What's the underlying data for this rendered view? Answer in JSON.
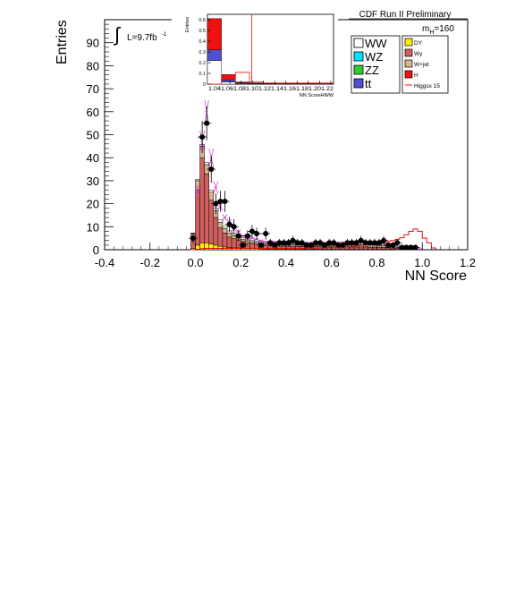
{
  "header": {
    "title": "CDF Run II Preliminary",
    "mass_label": "m_H=160",
    "luminosity": "L=9.7fb"
  },
  "legend": {
    "left": [
      {
        "label": "WW",
        "color": "#ffffff"
      },
      {
        "label": "WZ",
        "color": "#00e5ff"
      },
      {
        "label": "ZZ",
        "color": "#33cc33"
      },
      {
        "label": "tt",
        "color": "#5050d0"
      }
    ],
    "right": [
      {
        "label": "DY",
        "color": "#ffee00"
      },
      {
        "label": "Wγ",
        "color": "#d06060"
      },
      {
        "label": "W+jet",
        "color": "#d8b48c"
      },
      {
        "label": "H",
        "color": "#ee1111"
      },
      {
        "label": "Higgsx 15",
        "color": "#ee1111",
        "style": "line"
      }
    ]
  },
  "chart_data": [
    {
      "type": "bar",
      "title": "",
      "xlabel": "NN Score",
      "ylabel": "Entries",
      "xlim": [
        -0.4,
        1.2
      ],
      "ylim": [
        0,
        100
      ],
      "xticks": [
        "-0.4",
        "-0.2",
        "0.0",
        "0.2",
        "0.4",
        "0.6",
        "0.8",
        "1.0",
        "1.2"
      ],
      "yticks": [
        "0",
        "10",
        "20",
        "30",
        "40",
        "50",
        "60",
        "70",
        "80",
        "90"
      ],
      "bin_width": 0.02,
      "x": [
        -0.01,
        0.01,
        0.03,
        0.05,
        0.07,
        0.09,
        0.11,
        0.13,
        0.15,
        0.17,
        0.19,
        0.21,
        0.23,
        0.25,
        0.27,
        0.29,
        0.31,
        0.33,
        0.35,
        0.37,
        0.39,
        0.41,
        0.43,
        0.45,
        0.47,
        0.49,
        0.51,
        0.53,
        0.55,
        0.57,
        0.59,
        0.61,
        0.63,
        0.65,
        0.67,
        0.69,
        0.71,
        0.73,
        0.75,
        0.77,
        0.79,
        0.81,
        0.83,
        0.85,
        0.87,
        0.89,
        0.91,
        0.93,
        0.95,
        0.97,
        0.99,
        1.01,
        1.03,
        1.05
      ],
      "series": [
        {
          "name": "DY",
          "color": "#ffee00",
          "values": [
            0.5,
            2,
            3,
            3,
            2.5,
            2,
            1.5,
            1.2,
            1,
            0.8,
            0.8,
            0.6,
            0.5,
            0.5,
            0.5,
            0.4,
            0.3,
            0.3,
            0.3,
            0.3,
            0.3,
            0.3,
            0.3,
            0.3,
            0.2,
            0.2,
            0.2,
            0.2,
            0.2,
            0.2,
            0.2,
            0.2,
            0.2,
            0.2,
            0.2,
            0.2,
            0.2,
            0.2,
            0.2,
            0.2,
            0.2,
            0.2,
            0.2,
            0.2,
            0.2,
            0.1,
            0.1,
            0.1,
            0.1,
            0.1,
            0.1,
            0,
            0,
            0
          ]
        },
        {
          "name": "Wγ",
          "color": "#d06060",
          "values": [
            5,
            24,
            37,
            30,
            19,
            12,
            8,
            6,
            4.5,
            4,
            3.5,
            3,
            2.5,
            2.2,
            2,
            1.8,
            1.6,
            1.5,
            1.4,
            1.4,
            1.3,
            1.3,
            1.2,
            1.2,
            1.2,
            1.1,
            1.1,
            1.1,
            1.1,
            1.0,
            1.0,
            1.0,
            1.0,
            1.0,
            1.0,
            1.0,
            1.0,
            1.0,
            1.0,
            0.9,
            0.9,
            0.9,
            0.8,
            0.7,
            0.6,
            0.5,
            0.4,
            0.3,
            0.2,
            0.1,
            0.1,
            0,
            0,
            0
          ]
        },
        {
          "name": "W+jet",
          "color": "#d8b48c",
          "values": [
            1.5,
            4,
            5,
            4,
            3.5,
            3,
            2.5,
            2,
            1.8,
            1.5,
            1.2,
            1.0,
            0.9,
            0.8,
            0.7,
            0.7,
            0.6,
            0.6,
            0.6,
            0.6,
            0.6,
            0.6,
            0.6,
            0.6,
            0.6,
            0.6,
            0.6,
            0.6,
            0.6,
            0.6,
            0.6,
            0.7,
            0.7,
            0.8,
            0.8,
            0.9,
            0.9,
            1.0,
            1.0,
            1.0,
            1.0,
            0.9,
            0.8,
            0.7,
            0.6,
            0.5,
            0.4,
            0.3,
            0.2,
            0.1,
            0.1,
            0,
            0,
            0
          ]
        },
        {
          "name": "WW",
          "color": "#ffffff",
          "values": [
            0.3,
            0.5,
            0.8,
            1.0,
            1.0,
            1.0,
            1.0,
            0.9,
            0.9,
            0.8,
            0.8,
            0.7,
            0.7,
            0.7,
            0.6,
            0.6,
            0.6,
            0.6,
            0.6,
            0.6,
            0.6,
            0.6,
            0.6,
            0.6,
            0.6,
            0.6,
            0.6,
            0.6,
            0.6,
            0.7,
            0.7,
            0.7,
            0.7,
            0.7,
            0.7,
            0.8,
            0.8,
            0.8,
            0.8,
            0.8,
            0.8,
            0.8,
            0.7,
            0.6,
            0.5,
            0.4,
            0.3,
            0.2,
            0.2,
            0.1,
            0.1,
            0,
            0,
            0
          ]
        }
      ],
      "signal": {
        "name": "Higgsx 15",
        "color": "#ee1111",
        "values": [
          0,
          0.2,
          0.5,
          0.6,
          0.6,
          0.6,
          0.6,
          0.6,
          0.6,
          0.6,
          0.6,
          0.6,
          0.6,
          0.6,
          0.6,
          0.6,
          0.6,
          0.6,
          0.6,
          0.6,
          0.6,
          0.6,
          0.6,
          0.6,
          0.6,
          0.7,
          0.7,
          0.7,
          0.8,
          0.8,
          0.9,
          1.0,
          1.1,
          1.2,
          1.3,
          1.5,
          1.7,
          1.9,
          2.1,
          2.4,
          2.7,
          3.0,
          3.3,
          3.6,
          4.0,
          4.5,
          5.2,
          6.5,
          8.0,
          9.0,
          8.0,
          5.0,
          3.0,
          0.8
        ]
      },
      "uncertainty_band": {
        "color": "#cc33cc",
        "values": [
          6,
          26,
          47,
          60,
          40,
          27,
          19,
          14,
          12,
          9,
          8,
          6,
          5,
          5,
          4.5,
          4,
          3.5,
          3.5,
          3.5,
          3.5,
          3.2,
          3.2,
          3.2,
          3.0,
          3.0,
          3.0,
          3.0,
          3.0,
          3.0,
          3.0,
          3.0,
          3.0,
          3.0,
          3.2,
          3.2,
          3.5,
          3.5,
          3.5,
          3.5,
          3.5,
          3.5,
          3.2,
          3.0,
          2.5,
          2.0,
          1.5,
          1.0,
          0.8,
          0.5,
          0.3,
          0.2,
          0,
          0,
          0
        ]
      },
      "points": {
        "name": "Data",
        "x": [
          -0.01,
          0.03,
          0.05,
          0.07,
          0.09,
          0.11,
          0.13,
          0.15,
          0.17,
          0.19,
          0.21,
          0.23,
          0.25,
          0.27,
          0.29,
          0.31,
          0.33,
          0.35,
          0.37,
          0.39,
          0.41,
          0.43,
          0.45,
          0.47,
          0.49,
          0.51,
          0.53,
          0.55,
          0.57,
          0.59,
          0.61,
          0.63,
          0.65,
          0.67,
          0.69,
          0.71,
          0.73,
          0.75,
          0.77,
          0.79,
          0.81,
          0.83,
          0.85,
          0.87,
          0.89,
          0.91,
          0.93,
          0.95,
          0.97
        ],
        "y": [
          5,
          49,
          55,
          35,
          20,
          21,
          21,
          11,
          10,
          6,
          2,
          6,
          8,
          7,
          2,
          7,
          3,
          2,
          3,
          3,
          3,
          4,
          3,
          3,
          2,
          2,
          3,
          3,
          2,
          3,
          3,
          2,
          2,
          3,
          3,
          3,
          4,
          3,
          3,
          3,
          3,
          4,
          2,
          2,
          3,
          1,
          1,
          1,
          1
        ],
        "err": [
          2.2,
          7,
          7.4,
          5.9,
          4.5,
          4.6,
          4.6,
          3.3,
          3.2,
          2.4,
          1.4,
          2.4,
          2.8,
          2.6,
          1.4,
          2.6,
          1.7,
          1.4,
          1.7,
          1.7,
          1.7,
          2.0,
          1.7,
          1.7,
          1.4,
          1.4,
          1.7,
          1.7,
          1.4,
          1.7,
          1.7,
          1.4,
          1.4,
          1.7,
          1.7,
          1.7,
          2.0,
          1.7,
          1.7,
          1.7,
          1.7,
          2.0,
          1.4,
          1.4,
          1.7,
          1.0,
          1.0,
          1.0,
          1.0
        ]
      }
    },
    {
      "type": "bar",
      "title": "",
      "xlabel": "NN ScoreHWW",
      "ylabel": "Entries",
      "xlim": [
        1.0,
        1.225
      ],
      "ylim": [
        0,
        0.65
      ],
      "xticks": [
        "1.04",
        "1.06",
        "1.08",
        "1.1",
        "1.12",
        "1.14",
        "1.16",
        "1.18",
        "1.2",
        "1.22"
      ],
      "xtick_text": "1.041.061.081.101.121.141.161.181.201.22",
      "yticks": [
        "0",
        "0.1",
        "0.2",
        "0.3",
        "0.4",
        "0.5",
        "0.6"
      ],
      "bin_width": 0.025,
      "x": [
        1.0125,
        1.0375,
        1.0625,
        1.0875,
        1.1125,
        1.1375,
        1.1625,
        1.1875,
        1.2125
      ],
      "series": [
        {
          "name": "WW",
          "color": "#ffffff",
          "values": [
            0.22,
            0.02,
            0.005,
            0.003,
            0.002,
            0.002,
            0.002,
            0.002,
            0.001
          ]
        },
        {
          "name": "tt",
          "color": "#5050d0",
          "values": [
            0.1,
            0.02,
            0.005,
            0.003,
            0.002,
            0.001,
            0.001,
            0.001,
            0.001
          ]
        },
        {
          "name": "H",
          "color": "#ee1111",
          "values": [
            0.29,
            0.05,
            0.01,
            0.005,
            0.003,
            0.002,
            0.002,
            0.002,
            0.002
          ]
        }
      ],
      "signal": {
        "name": "Higgsx 15",
        "color": "#ee1111",
        "values": [
          0.0,
          0.06,
          0.11,
          0.02,
          0.01,
          0.01,
          0.01,
          0.01,
          0.01
        ]
      },
      "marker_x": 1.079
    }
  ]
}
